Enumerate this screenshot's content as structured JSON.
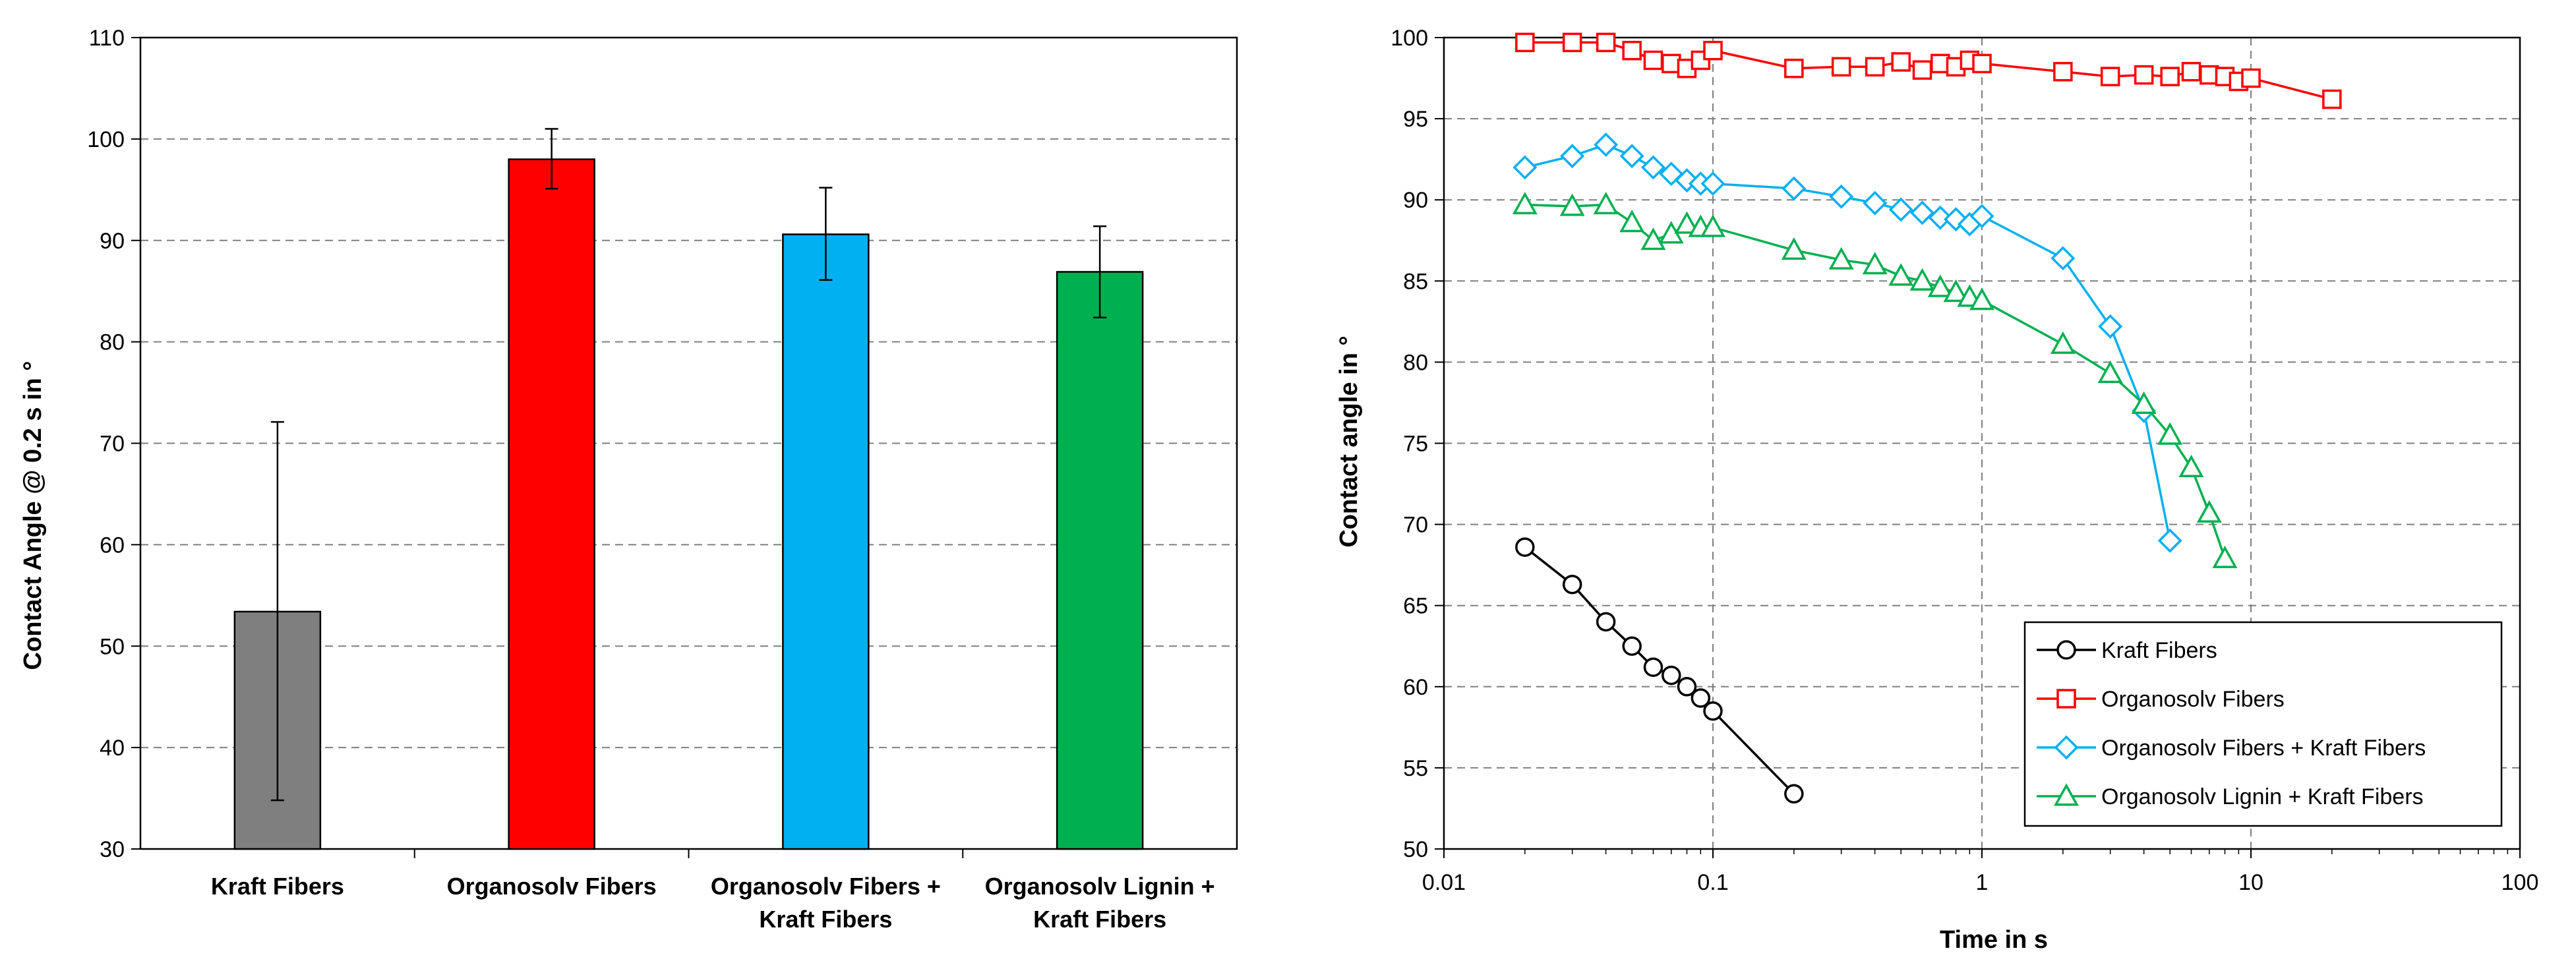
{
  "chart_data": [
    {
      "type": "bar",
      "ylabel": "Contact Angle @ 0.2 s in °",
      "xlabel": "",
      "ylim": [
        30,
        110
      ],
      "yticks": [
        30,
        40,
        50,
        60,
        70,
        80,
        90,
        100,
        110
      ],
      "grid": "dashed horizontal",
      "categories": [
        [
          "Kraft Fibers"
        ],
        [
          "Organosolv Fibers"
        ],
        [
          "Organosolv Fibers +",
          "Kraft Fibers"
        ],
        [
          "Organosolv Lignin +",
          "Kraft Fibers"
        ]
      ],
      "values": [
        53.4,
        98.0,
        90.6,
        86.9
      ],
      "error_low": [
        34.8,
        95.1,
        86.1,
        82.4
      ],
      "error_high": [
        72.1,
        101.0,
        95.2,
        91.4
      ],
      "colors": [
        "#7f7f7f",
        "#ff0000",
        "#00b0f0",
        "#00b050"
      ]
    },
    {
      "type": "line",
      "xscale": "log",
      "xlabel": "Time in s",
      "ylabel": "Contact angle in °",
      "xlim": [
        0.01,
        100
      ],
      "ylim": [
        50,
        100
      ],
      "xticks": [
        "0.01",
        "0.1",
        "1",
        "10",
        "100"
      ],
      "yticks": [
        50,
        55,
        60,
        65,
        70,
        75,
        80,
        85,
        90,
        95,
        100
      ],
      "grid": "dashed both",
      "legend_position": "bottom-right",
      "series": [
        {
          "name": "Kraft Fibers",
          "color": "#000000",
          "marker": "circle",
          "x": [
            0.02,
            0.03,
            0.04,
            0.05,
            0.06,
            0.07,
            0.08,
            0.09,
            0.1,
            0.2
          ],
          "y": [
            68.6,
            66.3,
            64.0,
            62.5,
            61.2,
            60.7,
            60.0,
            59.3,
            58.5,
            53.4
          ]
        },
        {
          "name": "Organosolv Fibers",
          "color": "#ff0000",
          "marker": "square",
          "x": [
            0.02,
            0.03,
            0.04,
            0.05,
            0.06,
            0.07,
            0.08,
            0.09,
            0.1,
            0.2,
            0.3,
            0.4,
            0.5,
            0.6,
            0.7,
            0.8,
            0.9,
            1,
            2,
            3,
            4,
            5,
            6,
            7,
            8,
            9,
            10,
            20
          ],
          "y": [
            99.7,
            99.7,
            99.7,
            99.2,
            98.6,
            98.4,
            98.1,
            98.6,
            99.2,
            98.1,
            98.2,
            98.2,
            98.5,
            98.0,
            98.4,
            98.2,
            98.6,
            98.4,
            97.9,
            97.6,
            97.7,
            97.6,
            97.9,
            97.7,
            97.6,
            97.3,
            97.5,
            96.2
          ]
        },
        {
          "name": "Organosolv Fibers + Kraft Fibers",
          "color": "#00b0f0",
          "marker": "diamond",
          "x": [
            0.02,
            0.03,
            0.04,
            0.05,
            0.06,
            0.07,
            0.08,
            0.09,
            0.1,
            0.2,
            0.3,
            0.4,
            0.5,
            0.6,
            0.7,
            0.8,
            0.9,
            1,
            2,
            3,
            4,
            5
          ],
          "y": [
            92.0,
            92.7,
            93.4,
            92.7,
            92.0,
            91.6,
            91.2,
            91.0,
            91.0,
            90.7,
            90.2,
            89.8,
            89.4,
            89.2,
            88.9,
            88.8,
            88.5,
            89.0,
            86.4,
            82.2,
            77.0,
            69.0
          ]
        },
        {
          "name": "Organosolv Lignin + Kraft Fibers",
          "color": "#00b050",
          "marker": "triangle",
          "x": [
            0.02,
            0.03,
            0.04,
            0.05,
            0.06,
            0.07,
            0.08,
            0.09,
            0.1,
            0.2,
            0.3,
            0.4,
            0.5,
            0.6,
            0.7,
            0.8,
            0.9,
            1,
            2,
            3,
            4,
            5,
            6,
            7,
            8
          ],
          "y": [
            89.7,
            89.6,
            89.7,
            88.6,
            87.5,
            87.9,
            88.5,
            88.3,
            88.3,
            86.9,
            86.3,
            86.0,
            85.3,
            85.0,
            84.6,
            84.3,
            84.0,
            83.8,
            81.1,
            79.3,
            77.4,
            75.5,
            73.5,
            70.7,
            67.9
          ]
        }
      ]
    }
  ]
}
